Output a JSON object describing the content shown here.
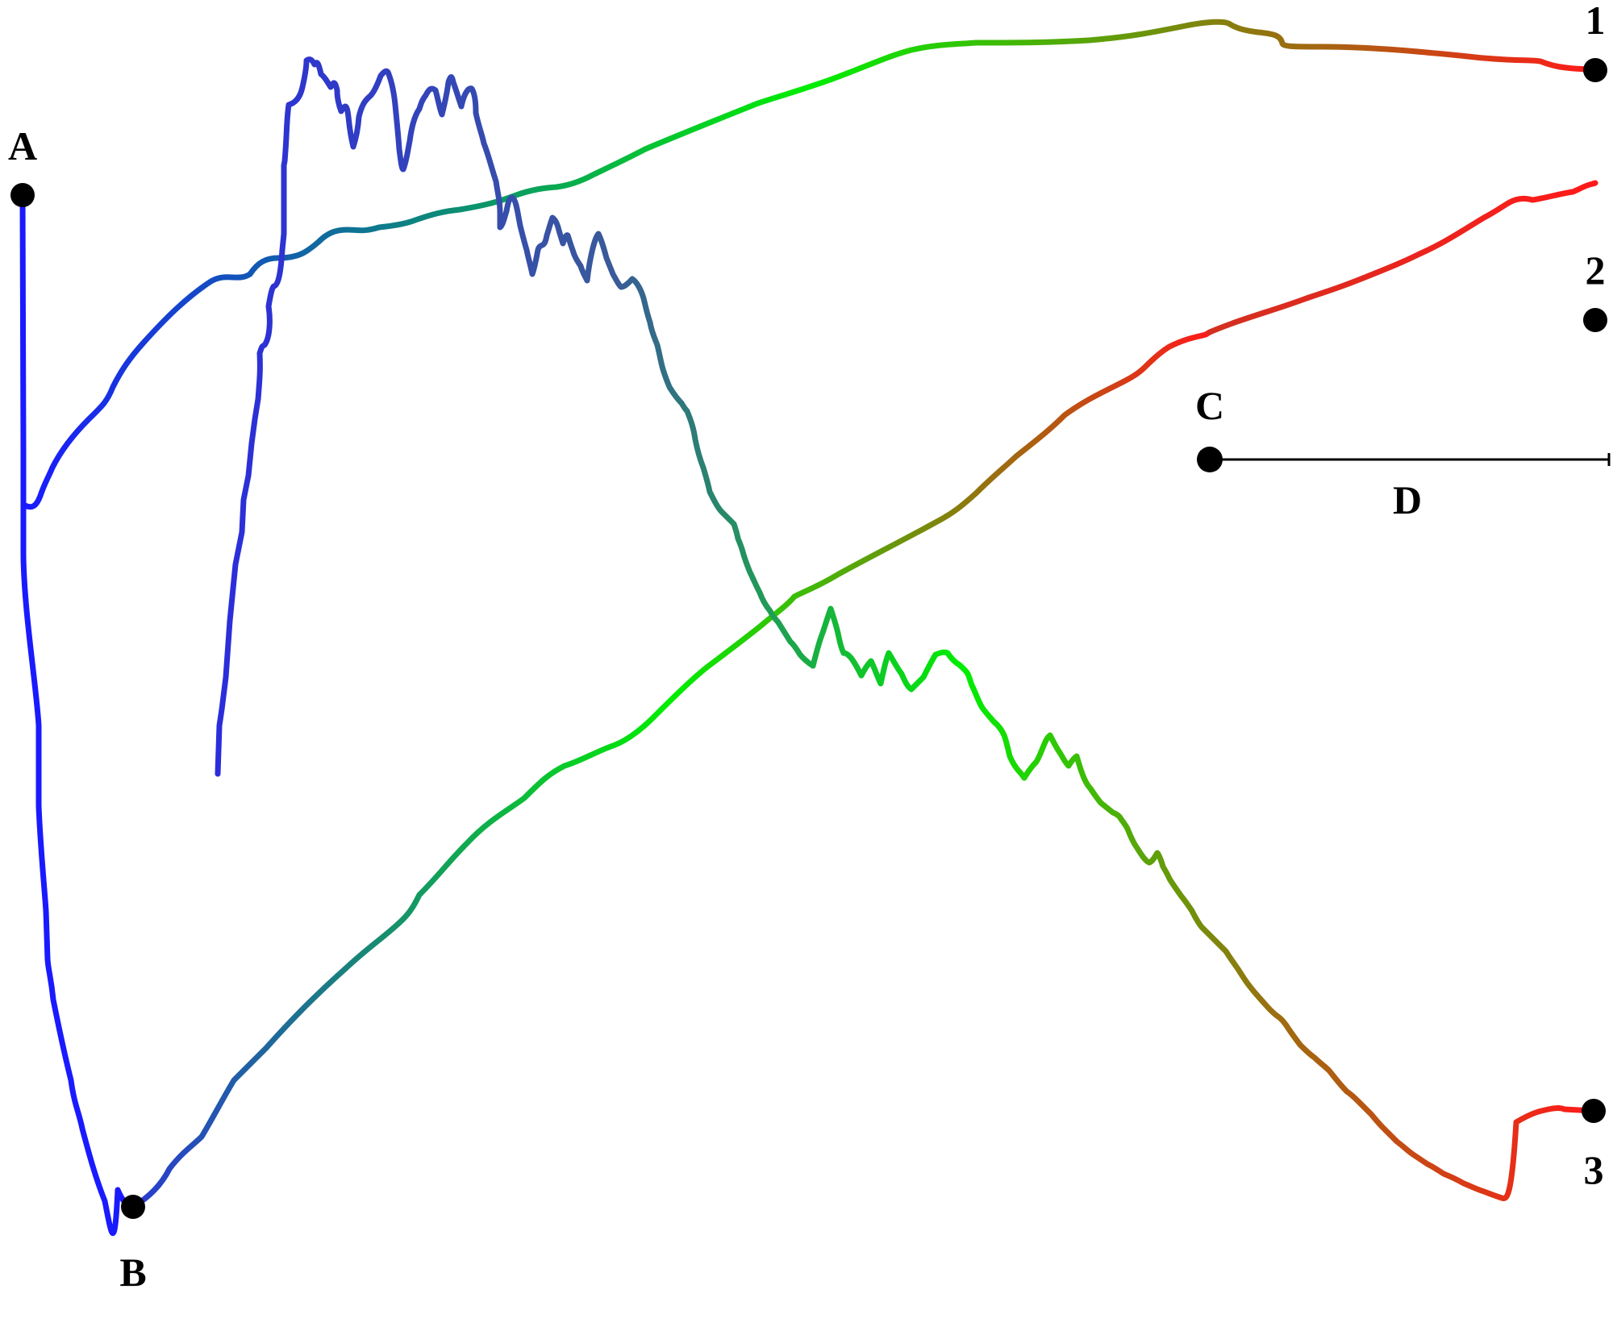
{
  "nodes": {
    "A": {
      "label": "A"
    },
    "B": {
      "label": "B"
    },
    "C": {
      "label": "C"
    },
    "end1": {
      "label": "1"
    },
    "end2": {
      "label": "2"
    },
    "end3": {
      "label": "3"
    }
  },
  "measure": {
    "label": "D"
  },
  "colors": {
    "start": "#1a1aff",
    "mid": "#00ee00",
    "end": "#ff1a1a",
    "ink": "#000000"
  }
}
